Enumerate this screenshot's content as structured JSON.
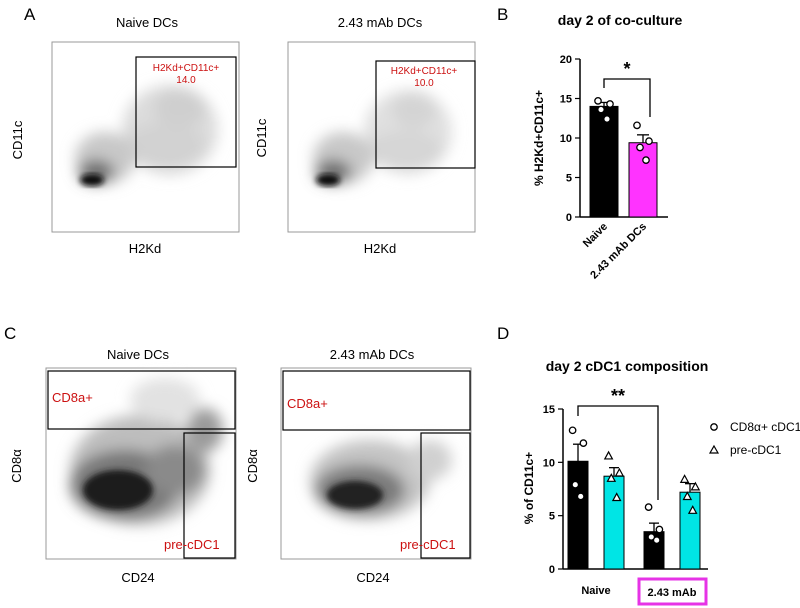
{
  "panels": {
    "a": {
      "letter": "A",
      "plots": [
        {
          "title": "Naive DCs",
          "xlabel": "H2Kd",
          "ylabel": "CD11c",
          "gate_name": "H2Kd+CD11c+",
          "gate_value": "14.0"
        },
        {
          "title": "2.43 mAb DCs",
          "xlabel": "H2Kd",
          "ylabel": "CD11c",
          "gate_name": "H2Kd+CD11c+",
          "gate_value": "10.0"
        }
      ]
    },
    "c": {
      "letter": "C",
      "plots": [
        {
          "title": "Naive DCs",
          "xlabel": "CD24",
          "ylabel": "CD8α",
          "gate_top": "CD8a+",
          "gate_right": "pre-cDC1"
        },
        {
          "title": "2.43 mAb DCs",
          "xlabel": "CD24",
          "ylabel": "CD8α",
          "gate_top": "CD8a+",
          "gate_right": "pre-cDC1"
        }
      ]
    }
  },
  "chart_data": [
    {
      "panel": "B",
      "type": "bar",
      "title": "day 2 of co-culture",
      "ylabel": "% H2Kd+CD11c+",
      "xlabel": "",
      "ylim": [
        0,
        20
      ],
      "yticks": [
        "0",
        "5",
        "10",
        "15",
        "20"
      ],
      "categories": [
        "Naive",
        "2.43 mAb DCs"
      ],
      "values": [
        14.0,
        9.4
      ],
      "errors": [
        0.5,
        1.0
      ],
      "points": [
        [
          14.7,
          14.3,
          13.6,
          12.4
        ],
        [
          11.6,
          9.6,
          8.8,
          7.2
        ]
      ],
      "colors": [
        "#000000",
        "#ff33ff"
      ],
      "significance": "*"
    },
    {
      "panel": "D",
      "type": "bar",
      "title": "day 2 cDC1 composition",
      "ylabel": "% of CD11c+",
      "xlabel": "",
      "ylim": [
        0,
        15
      ],
      "yticks": [
        "0",
        "5",
        "10",
        "15"
      ],
      "categories": [
        "Naive",
        "2.43 mAb"
      ],
      "series": [
        {
          "name": "CD8α+ cDC1",
          "marker": "circle",
          "color": "#000000",
          "values": [
            10.1,
            3.5
          ],
          "errors": [
            1.6,
            0.8
          ],
          "points": [
            [
              13.0,
              11.8,
              7.9,
              6.8
            ],
            [
              5.8,
              3.7,
              3.0,
              2.7
            ]
          ]
        },
        {
          "name": "pre-cDC1",
          "marker": "triangle",
          "color": "#00e5e5",
          "values": [
            8.7,
            7.2
          ],
          "errors": [
            0.8,
            0.8
          ],
          "points": [
            [
              10.6,
              9.0,
              8.5,
              6.7
            ],
            [
              8.4,
              7.7,
              6.8,
              5.5
            ]
          ]
        }
      ],
      "significance": "**"
    }
  ]
}
